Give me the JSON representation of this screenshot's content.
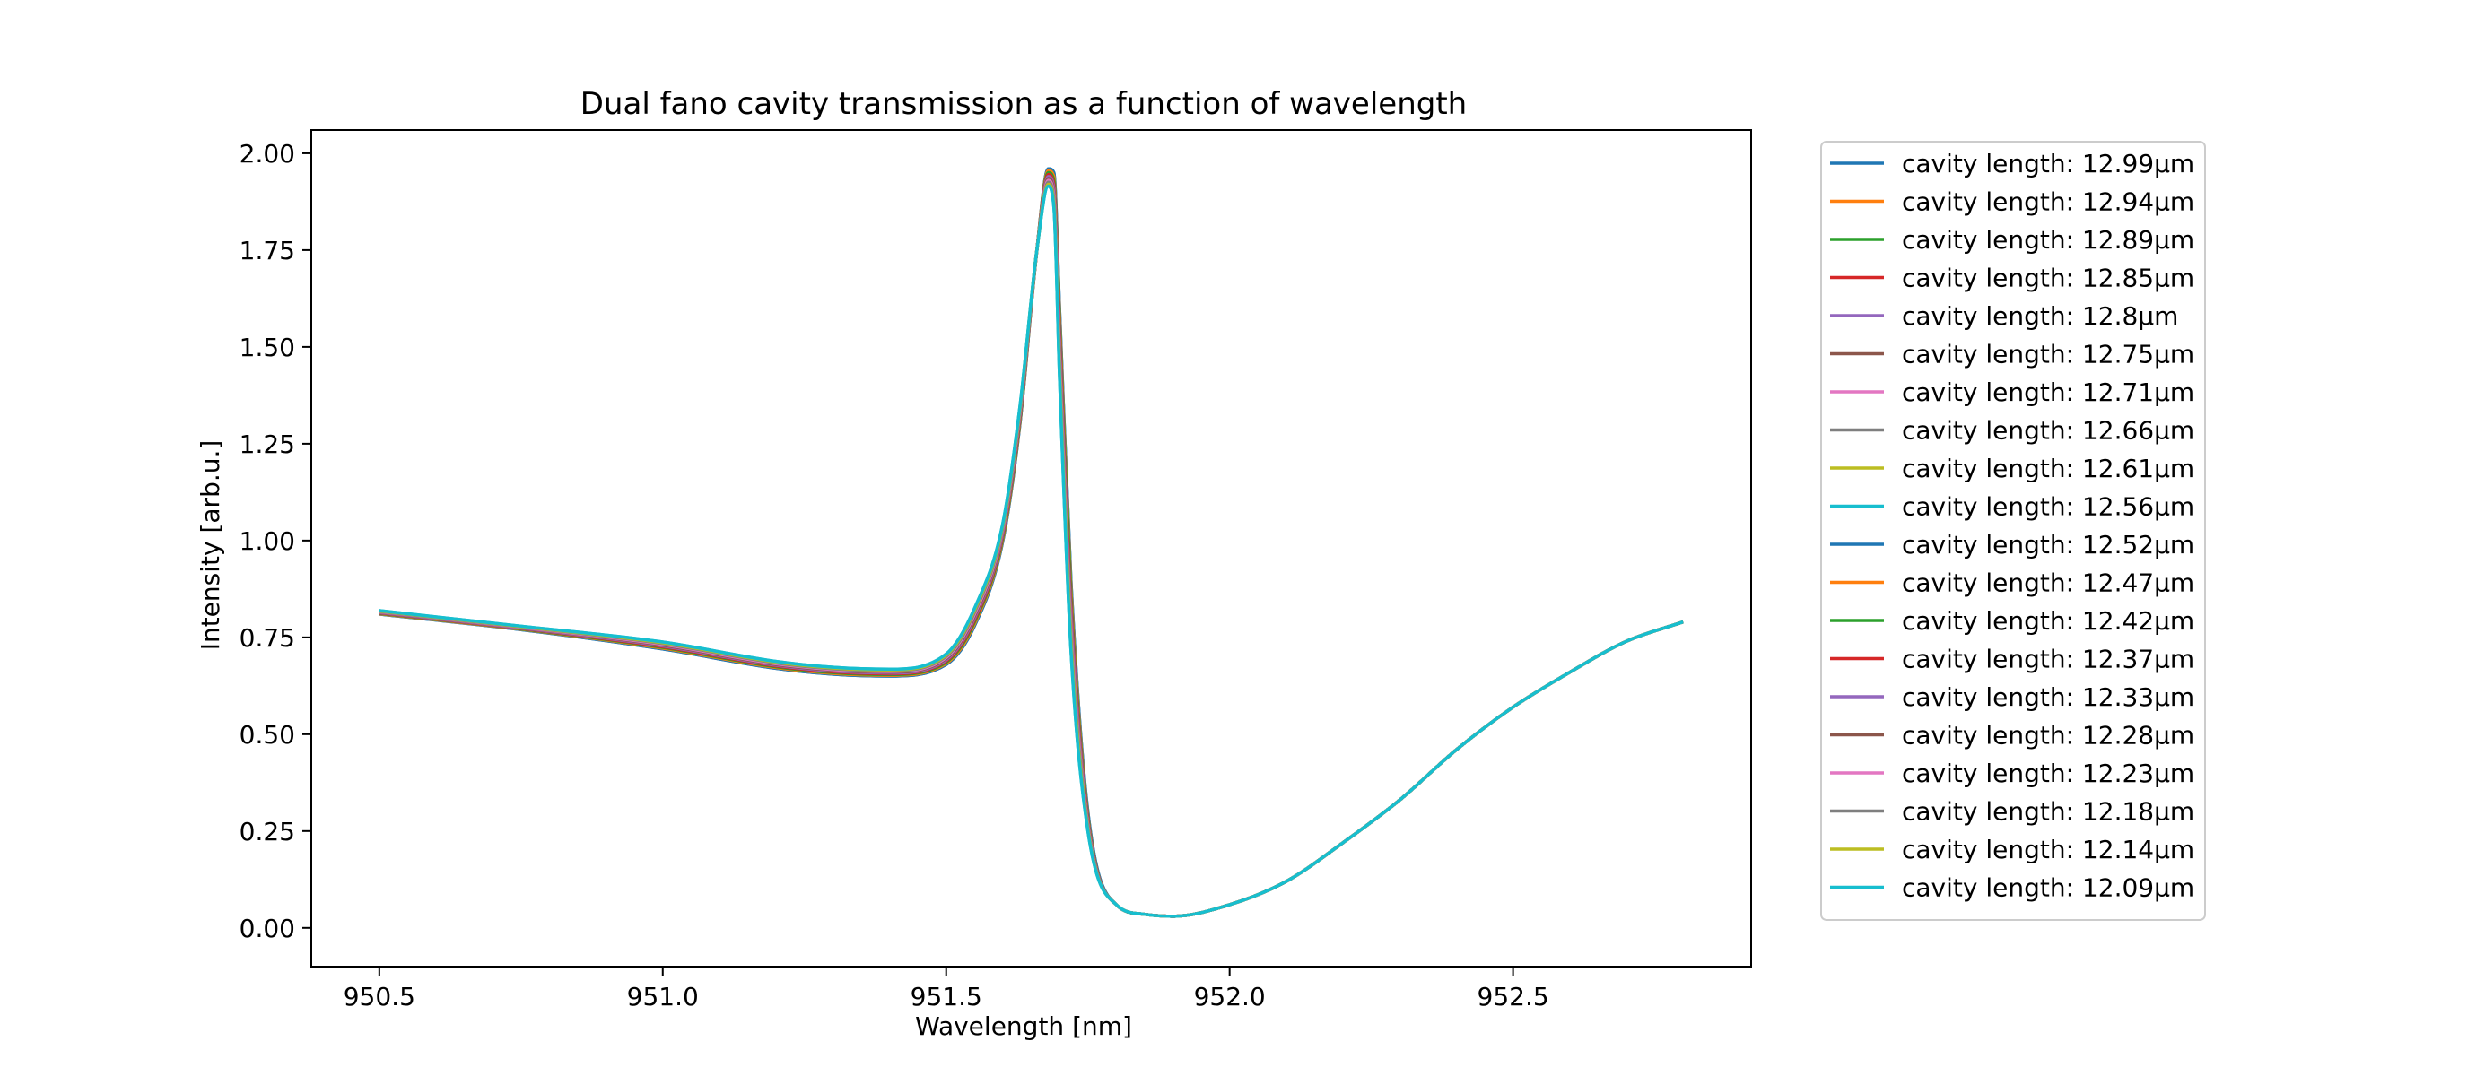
{
  "chart_data": {
    "type": "line",
    "title": "Dual fano cavity transmission as a function of wavelength",
    "xlabel": "Wavelength [nm]",
    "ylabel": "Intensity [arb.u.]",
    "xlim": [
      950.38,
      952.92
    ],
    "ylim": [
      -0.1,
      2.06
    ],
    "xticks": [
      950.5,
      951.0,
      951.5,
      952.0,
      952.5
    ],
    "xtick_labels": [
      "950.5",
      "951.0",
      "951.5",
      "952.0",
      "952.5"
    ],
    "yticks": [
      0.0,
      0.25,
      0.5,
      0.75,
      1.0,
      1.25,
      1.5,
      1.75,
      2.0
    ],
    "ytick_labels": [
      "0.00",
      "0.25",
      "0.50",
      "0.75",
      "1.00",
      "1.25",
      "1.50",
      "1.75",
      "2.00"
    ],
    "grid": false,
    "legend_position": "outside-right",
    "x": [
      950.5,
      950.75,
      951.0,
      951.2,
      951.3,
      951.4,
      951.5,
      951.55,
      951.6,
      951.63,
      951.66,
      951.68,
      951.69,
      951.7,
      951.72,
      951.75,
      951.8,
      951.85,
      951.9,
      952.0,
      952.1,
      952.2,
      952.3,
      952.4,
      952.5,
      952.6,
      952.7,
      952.8
    ],
    "series": [
      {
        "name": "cavity length: 12.99µm",
        "color": "#1f77b4",
        "values": [
          0.81,
          0.77,
          0.72,
          0.67,
          0.655,
          0.65,
          0.68,
          0.78,
          1.0,
          1.3,
          1.75,
          1.96,
          1.95,
          1.6,
          0.9,
          0.3,
          0.06,
          0.035,
          0.03,
          0.06,
          0.12,
          0.22,
          0.33,
          0.46,
          0.57,
          0.66,
          0.74,
          0.79
        ]
      },
      {
        "name": "cavity length: 12.94µm",
        "color": "#ff7f0e",
        "values": [
          0.811,
          0.771,
          0.722,
          0.672,
          0.657,
          0.652,
          0.683,
          0.785,
          1.005,
          1.305,
          1.75,
          1.955,
          1.94,
          1.58,
          0.88,
          0.29,
          0.06,
          0.035,
          0.03,
          0.06,
          0.12,
          0.22,
          0.33,
          0.46,
          0.57,
          0.66,
          0.74,
          0.79
        ]
      },
      {
        "name": "cavity length: 12.89µm",
        "color": "#2ca02c",
        "values": [
          0.812,
          0.772,
          0.724,
          0.674,
          0.659,
          0.654,
          0.686,
          0.79,
          1.01,
          1.31,
          1.75,
          1.95,
          1.93,
          1.56,
          0.86,
          0.285,
          0.06,
          0.035,
          0.03,
          0.06,
          0.12,
          0.22,
          0.33,
          0.46,
          0.57,
          0.66,
          0.74,
          0.79
        ]
      },
      {
        "name": "cavity length: 12.85µm",
        "color": "#d62728",
        "values": [
          0.813,
          0.773,
          0.726,
          0.676,
          0.661,
          0.656,
          0.689,
          0.795,
          1.015,
          1.315,
          1.75,
          1.945,
          1.92,
          1.54,
          0.84,
          0.28,
          0.06,
          0.035,
          0.03,
          0.06,
          0.12,
          0.22,
          0.33,
          0.46,
          0.57,
          0.66,
          0.74,
          0.79
        ]
      },
      {
        "name": "cavity length: 12.8µm",
        "color": "#9467bd",
        "values": [
          0.814,
          0.774,
          0.728,
          0.678,
          0.663,
          0.658,
          0.692,
          0.8,
          1.02,
          1.32,
          1.75,
          1.94,
          1.91,
          1.52,
          0.82,
          0.275,
          0.06,
          0.035,
          0.03,
          0.06,
          0.12,
          0.22,
          0.33,
          0.46,
          0.57,
          0.66,
          0.74,
          0.79
        ]
      },
      {
        "name": "cavity length: 12.75µm",
        "color": "#8c564b",
        "values": [
          0.815,
          0.775,
          0.73,
          0.68,
          0.665,
          0.66,
          0.695,
          0.805,
          1.025,
          1.325,
          1.75,
          1.935,
          1.9,
          1.5,
          0.8,
          0.27,
          0.06,
          0.035,
          0.03,
          0.06,
          0.12,
          0.22,
          0.33,
          0.46,
          0.57,
          0.66,
          0.74,
          0.79
        ]
      },
      {
        "name": "cavity length: 12.71µm",
        "color": "#e377c2",
        "values": [
          0.816,
          0.776,
          0.732,
          0.682,
          0.667,
          0.662,
          0.698,
          0.81,
          1.03,
          1.33,
          1.75,
          1.93,
          1.89,
          1.48,
          0.78,
          0.265,
          0.06,
          0.035,
          0.03,
          0.06,
          0.12,
          0.22,
          0.33,
          0.46,
          0.57,
          0.66,
          0.74,
          0.79
        ]
      },
      {
        "name": "cavity length: 12.66µm",
        "color": "#7f7f7f",
        "values": [
          0.817,
          0.777,
          0.734,
          0.684,
          0.669,
          0.664,
          0.701,
          0.815,
          1.035,
          1.335,
          1.75,
          1.925,
          1.88,
          1.46,
          0.76,
          0.26,
          0.06,
          0.035,
          0.03,
          0.06,
          0.12,
          0.22,
          0.33,
          0.46,
          0.57,
          0.66,
          0.74,
          0.79
        ]
      },
      {
        "name": "cavity length: 12.61µm",
        "color": "#bcbd22",
        "values": [
          0.818,
          0.778,
          0.736,
          0.686,
          0.671,
          0.666,
          0.704,
          0.82,
          1.04,
          1.34,
          1.75,
          1.92,
          1.87,
          1.44,
          0.74,
          0.255,
          0.06,
          0.035,
          0.03,
          0.06,
          0.12,
          0.22,
          0.33,
          0.46,
          0.57,
          0.66,
          0.74,
          0.79
        ]
      },
      {
        "name": "cavity length: 12.56µm",
        "color": "#17becf",
        "values": [
          0.819,
          0.779,
          0.738,
          0.688,
          0.673,
          0.668,
          0.707,
          0.825,
          1.045,
          1.345,
          1.75,
          1.915,
          1.86,
          1.42,
          0.72,
          0.25,
          0.06,
          0.035,
          0.03,
          0.06,
          0.12,
          0.22,
          0.33,
          0.46,
          0.57,
          0.66,
          0.74,
          0.79
        ]
      },
      {
        "name": "cavity length: 12.52µm",
        "color": "#1f77b4",
        "values": [
          0.81,
          0.77,
          0.72,
          0.67,
          0.655,
          0.65,
          0.68,
          0.78,
          1.0,
          1.3,
          1.75,
          1.96,
          1.95,
          1.6,
          0.9,
          0.3,
          0.06,
          0.035,
          0.03,
          0.06,
          0.12,
          0.22,
          0.33,
          0.46,
          0.57,
          0.66,
          0.74,
          0.79
        ]
      },
      {
        "name": "cavity length: 12.47µm",
        "color": "#ff7f0e",
        "values": [
          0.811,
          0.771,
          0.722,
          0.672,
          0.657,
          0.652,
          0.683,
          0.785,
          1.005,
          1.305,
          1.75,
          1.955,
          1.94,
          1.58,
          0.88,
          0.29,
          0.06,
          0.035,
          0.03,
          0.06,
          0.12,
          0.22,
          0.33,
          0.46,
          0.57,
          0.66,
          0.74,
          0.79
        ]
      },
      {
        "name": "cavity length: 12.42µm",
        "color": "#2ca02c",
        "values": [
          0.812,
          0.772,
          0.724,
          0.674,
          0.659,
          0.654,
          0.686,
          0.79,
          1.01,
          1.31,
          1.75,
          1.95,
          1.93,
          1.56,
          0.86,
          0.285,
          0.06,
          0.035,
          0.03,
          0.06,
          0.12,
          0.22,
          0.33,
          0.46,
          0.57,
          0.66,
          0.74,
          0.79
        ]
      },
      {
        "name": "cavity length: 12.37µm",
        "color": "#d62728",
        "values": [
          0.813,
          0.773,
          0.726,
          0.676,
          0.661,
          0.656,
          0.689,
          0.795,
          1.015,
          1.315,
          1.75,
          1.945,
          1.92,
          1.54,
          0.84,
          0.28,
          0.06,
          0.035,
          0.03,
          0.06,
          0.12,
          0.22,
          0.33,
          0.46,
          0.57,
          0.66,
          0.74,
          0.79
        ]
      },
      {
        "name": "cavity length: 12.33µm",
        "color": "#9467bd",
        "values": [
          0.814,
          0.774,
          0.728,
          0.678,
          0.663,
          0.658,
          0.692,
          0.8,
          1.02,
          1.32,
          1.75,
          1.94,
          1.91,
          1.52,
          0.82,
          0.275,
          0.06,
          0.035,
          0.03,
          0.06,
          0.12,
          0.22,
          0.33,
          0.46,
          0.57,
          0.66,
          0.74,
          0.79
        ]
      },
      {
        "name": "cavity length: 12.28µm",
        "color": "#8c564b",
        "values": [
          0.815,
          0.775,
          0.73,
          0.68,
          0.665,
          0.66,
          0.695,
          0.805,
          1.025,
          1.325,
          1.75,
          1.935,
          1.9,
          1.5,
          0.8,
          0.27,
          0.06,
          0.035,
          0.03,
          0.06,
          0.12,
          0.22,
          0.33,
          0.46,
          0.57,
          0.66,
          0.74,
          0.79
        ]
      },
      {
        "name": "cavity length: 12.23µm",
        "color": "#e377c2",
        "values": [
          0.816,
          0.776,
          0.732,
          0.682,
          0.667,
          0.662,
          0.698,
          0.81,
          1.03,
          1.33,
          1.75,
          1.93,
          1.89,
          1.48,
          0.78,
          0.265,
          0.06,
          0.035,
          0.03,
          0.06,
          0.12,
          0.22,
          0.33,
          0.46,
          0.57,
          0.66,
          0.74,
          0.79
        ]
      },
      {
        "name": "cavity length: 12.18µm",
        "color": "#7f7f7f",
        "values": [
          0.817,
          0.777,
          0.734,
          0.684,
          0.669,
          0.664,
          0.701,
          0.815,
          1.035,
          1.335,
          1.75,
          1.925,
          1.88,
          1.46,
          0.76,
          0.26,
          0.06,
          0.035,
          0.03,
          0.06,
          0.12,
          0.22,
          0.33,
          0.46,
          0.57,
          0.66,
          0.74,
          0.79
        ]
      },
      {
        "name": "cavity length: 12.14µm",
        "color": "#bcbd22",
        "values": [
          0.818,
          0.778,
          0.736,
          0.686,
          0.671,
          0.666,
          0.704,
          0.82,
          1.04,
          1.34,
          1.75,
          1.92,
          1.87,
          1.44,
          0.74,
          0.255,
          0.06,
          0.035,
          0.03,
          0.06,
          0.12,
          0.22,
          0.33,
          0.46,
          0.57,
          0.66,
          0.74,
          0.79
        ]
      },
      {
        "name": "cavity length: 12.09µm",
        "color": "#17becf",
        "values": [
          0.819,
          0.779,
          0.738,
          0.688,
          0.673,
          0.668,
          0.707,
          0.825,
          1.045,
          1.345,
          1.75,
          1.915,
          1.86,
          1.42,
          0.72,
          0.25,
          0.06,
          0.035,
          0.03,
          0.06,
          0.12,
          0.22,
          0.33,
          0.46,
          0.57,
          0.66,
          0.74,
          0.79
        ]
      }
    ]
  }
}
